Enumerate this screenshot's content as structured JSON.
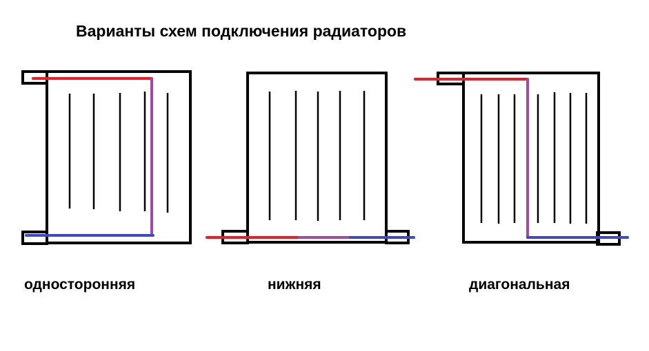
{
  "title": "Варианты схем подключения радиаторов",
  "colors": {
    "supply": "#ee1c24",
    "mixed": "#a349a4",
    "return": "#3f48cc"
  },
  "schemes": [
    {
      "label": "односторонняя"
    },
    {
      "label": "нижняя"
    },
    {
      "label": "диагональная"
    }
  ]
}
